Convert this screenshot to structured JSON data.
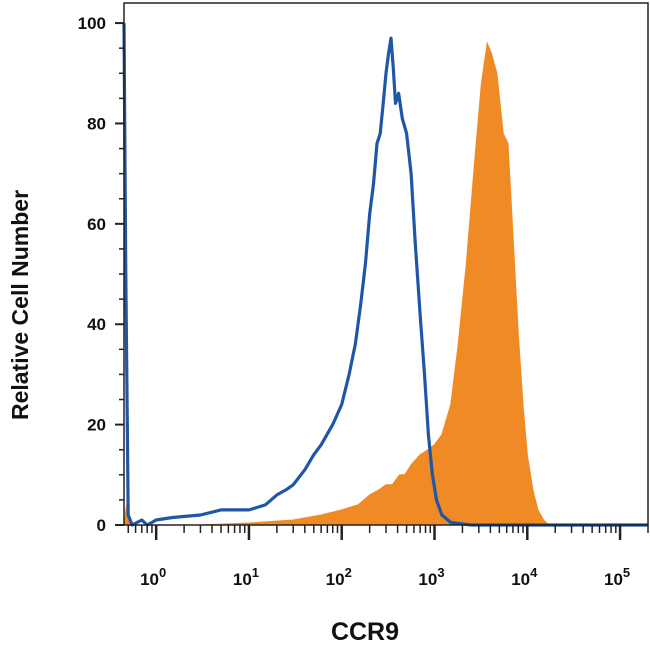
{
  "chart_data": {
    "type": "area",
    "xlabel": "CCR9",
    "ylabel": "Relative Cell Number",
    "xscale": "log",
    "xlim": [
      0.45,
      200000
    ],
    "ylim": [
      0,
      104
    ],
    "grid": false,
    "legend": "none",
    "y_ticks": [
      {
        "value": 0,
        "label": "0"
      },
      {
        "value": 20,
        "label": "20"
      },
      {
        "value": 40,
        "label": "40"
      },
      {
        "value": 60,
        "label": "60"
      },
      {
        "value": 80,
        "label": "80"
      },
      {
        "value": 100,
        "label": "100"
      }
    ],
    "x_ticks": [
      {
        "value": 1,
        "base": "10",
        "exp": "0"
      },
      {
        "value": 10,
        "base": "10",
        "exp": "1"
      },
      {
        "value": 100,
        "base": "10",
        "exp": "2"
      },
      {
        "value": 1000,
        "base": "10",
        "exp": "3"
      },
      {
        "value": 10000,
        "base": "10",
        "exp": "4"
      },
      {
        "value": 100000,
        "base": "10",
        "exp": "5"
      }
    ],
    "series": [
      {
        "style": "filled",
        "color": "#f08a24",
        "points": [
          [
            0.45,
            0
          ],
          [
            0.48,
            4
          ],
          [
            0.52,
            1
          ],
          [
            0.6,
            0
          ],
          [
            1,
            0
          ],
          [
            3,
            0
          ],
          [
            10,
            0.4
          ],
          [
            30,
            1
          ],
          [
            60,
            2
          ],
          [
            100,
            3
          ],
          [
            150,
            4
          ],
          [
            200,
            6
          ],
          [
            250,
            7
          ],
          [
            300,
            8
          ],
          [
            350,
            8
          ],
          [
            420,
            10
          ],
          [
            480,
            10
          ],
          [
            560,
            12
          ],
          [
            700,
            14
          ],
          [
            850,
            15
          ],
          [
            1000,
            16
          ],
          [
            1200,
            18
          ],
          [
            1500,
            24
          ],
          [
            1800,
            36
          ],
          [
            2200,
            52
          ],
          [
            2700,
            72
          ],
          [
            3200,
            88
          ],
          [
            3700,
            96
          ],
          [
            4100,
            94
          ],
          [
            4700,
            90
          ],
          [
            5500,
            78
          ],
          [
            6200,
            76
          ],
          [
            7000,
            58
          ],
          [
            8000,
            38
          ],
          [
            9000,
            24
          ],
          [
            10000,
            14
          ],
          [
            11500,
            7
          ],
          [
            13000,
            3
          ],
          [
            15000,
            1
          ],
          [
            17000,
            0
          ],
          [
            200000,
            0
          ]
        ]
      },
      {
        "style": "line",
        "color": "#1f56a8",
        "points": [
          [
            0.45,
            100
          ],
          [
            0.47,
            50
          ],
          [
            0.5,
            2
          ],
          [
            0.55,
            0
          ],
          [
            0.7,
            1
          ],
          [
            0.8,
            0
          ],
          [
            1,
            1
          ],
          [
            1.5,
            1.5
          ],
          [
            3,
            2
          ],
          [
            5,
            3
          ],
          [
            7,
            3
          ],
          [
            10,
            3
          ],
          [
            15,
            4
          ],
          [
            20,
            6
          ],
          [
            25,
            7
          ],
          [
            30,
            8
          ],
          [
            40,
            11
          ],
          [
            50,
            14
          ],
          [
            60,
            16
          ],
          [
            80,
            20
          ],
          [
            100,
            24
          ],
          [
            120,
            30
          ],
          [
            140,
            36
          ],
          [
            160,
            44
          ],
          [
            180,
            52
          ],
          [
            200,
            62
          ],
          [
            220,
            68
          ],
          [
            240,
            76
          ],
          [
            260,
            78
          ],
          [
            280,
            84
          ],
          [
            300,
            90
          ],
          [
            320,
            94
          ],
          [
            340,
            97
          ],
          [
            360,
            91
          ],
          [
            380,
            84
          ],
          [
            410,
            86
          ],
          [
            450,
            81
          ],
          [
            500,
            78
          ],
          [
            560,
            70
          ],
          [
            620,
            56
          ],
          [
            700,
            42
          ],
          [
            780,
            30
          ],
          [
            860,
            18
          ],
          [
            950,
            10
          ],
          [
            1050,
            5
          ],
          [
            1200,
            2
          ],
          [
            1500,
            0.5
          ],
          [
            2500,
            0
          ],
          [
            200000,
            0
          ]
        ]
      }
    ]
  }
}
